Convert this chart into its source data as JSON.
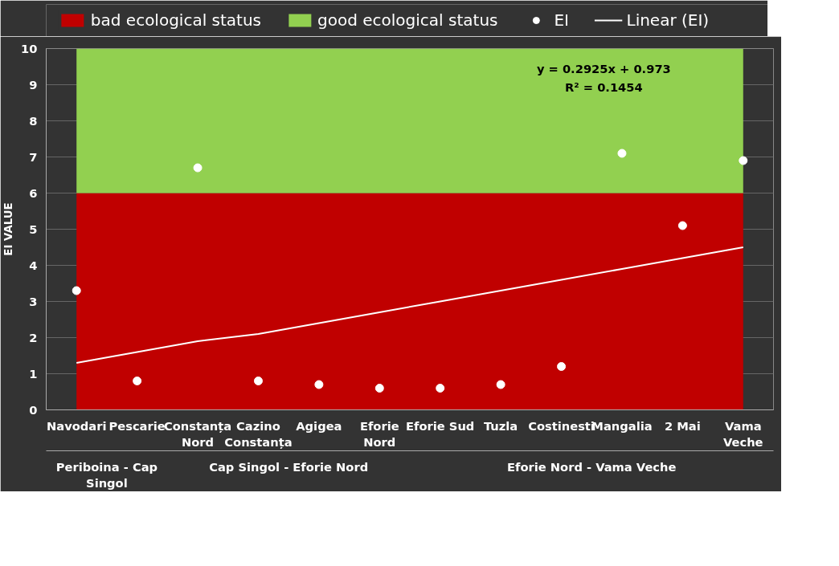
{
  "chart_data": {
    "type": "scatter",
    "ylabel": "EI VALUE",
    "categories": [
      "Navodari",
      "Pescarie",
      "Constanța\nNord",
      "Cazino\nConstanța",
      "Agigea",
      "Eforie\nNord",
      "Eforie Sud",
      "Tuzla",
      "Costinesti",
      "Mangalia",
      "2 Mai",
      "Vama\nVeche"
    ],
    "series": [
      {
        "name": "bad ecological status",
        "type": "area",
        "color": "#c00000",
        "values": [
          6,
          6,
          6,
          6,
          6,
          6,
          6,
          6,
          6,
          6,
          6,
          6
        ]
      },
      {
        "name": "good ecological status",
        "type": "area",
        "color": "#92d050",
        "values": [
          4,
          4,
          4,
          4,
          4,
          4,
          4,
          4,
          4,
          4,
          4,
          4
        ]
      },
      {
        "name": "EI",
        "color": "#ffffff",
        "marker": "circle",
        "values": [
          3.3,
          0.8,
          6.7,
          0.8,
          0.7,
          0.6,
          0.6,
          0.7,
          1.2,
          7.1,
          5.1,
          6.9
        ]
      },
      {
        "name": "Linear (EI)",
        "type": "line",
        "color": "#ffffff",
        "values": [
          1.3,
          1.6,
          1.9,
          2.1,
          2.4,
          2.7,
          3.0,
          3.3,
          3.6,
          3.9,
          4.2,
          4.5
        ]
      }
    ],
    "stacked": true,
    "ylim": [
      0,
      10
    ],
    "yticks": [
      0,
      1,
      2,
      3,
      4,
      5,
      6,
      7,
      8,
      9,
      10
    ],
    "grid": "y",
    "legend": "top",
    "annotations": [
      "y = 0.2925x + 0.973",
      "R² = 0.1454",
      "Periboina - Cap\nSingol",
      "Cap Singol - Eforie Nord",
      "Eforie Nord - Vama Veche"
    ]
  }
}
